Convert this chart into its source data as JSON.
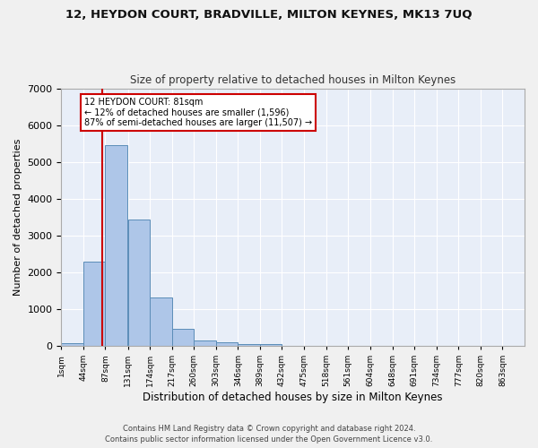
{
  "title1": "12, HEYDON COURT, BRADVILLE, MILTON KEYNES, MK13 7UQ",
  "title2": "Size of property relative to detached houses in Milton Keynes",
  "xlabel": "Distribution of detached houses by size in Milton Keynes",
  "ylabel": "Number of detached properties",
  "property_size": 81,
  "annotation_line1": "12 HEYDON COURT: 81sqm",
  "annotation_line2": "← 12% of detached houses are smaller (1,596)",
  "annotation_line3": "87% of semi-detached houses are larger (11,507) →",
  "footer1": "Contains HM Land Registry data © Crown copyright and database right 2024.",
  "footer2": "Contains public sector information licensed under the Open Government Licence v3.0.",
  "bin_edges": [
    1,
    44,
    87,
    131,
    174,
    217,
    260,
    303,
    346,
    389,
    432,
    475,
    518,
    561,
    604,
    648,
    691,
    734,
    777,
    820,
    863
  ],
  "bar_heights": [
    80,
    2290,
    5460,
    3440,
    1320,
    470,
    155,
    90,
    55,
    45,
    0,
    0,
    0,
    0,
    0,
    0,
    0,
    0,
    0,
    0
  ],
  "bar_color": "#aec6e8",
  "bar_edge_color": "#5b8db8",
  "red_line_x": 81,
  "ylim": [
    0,
    7000
  ],
  "background_color": "#e8eef8",
  "grid_color": "#ffffff",
  "annotation_box_color": "#ffffff",
  "annotation_box_edge_color": "#cc0000",
  "red_line_color": "#cc0000",
  "fig_background": "#f0f0f0",
  "tick_labels": [
    "1sqm",
    "44sqm",
    "87sqm",
    "131sqm",
    "174sqm",
    "217sqm",
    "260sqm",
    "303sqm",
    "346sqm",
    "389sqm",
    "432sqm",
    "475sqm",
    "518sqm",
    "561sqm",
    "604sqm",
    "648sqm",
    "691sqm",
    "734sqm",
    "777sqm",
    "820sqm",
    "863sqm"
  ]
}
